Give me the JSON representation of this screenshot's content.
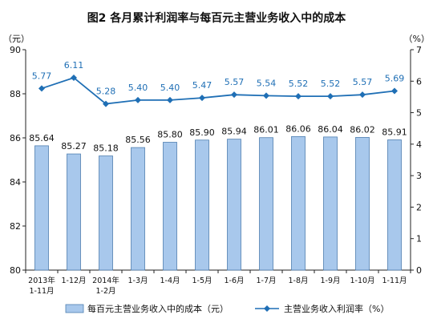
{
  "chart_data": {
    "type": "bar+line",
    "title": "图2  各月累计利润率与每百元主营业务收入中的成本",
    "left_unit": "（元）",
    "right_unit": "（%）",
    "categories": [
      [
        "2013年",
        "1-11月"
      ],
      [
        "1-12月"
      ],
      [
        "2014年",
        "1-2月"
      ],
      [
        "1-3月"
      ],
      [
        "1-4月"
      ],
      [
        "1-5月"
      ],
      [
        "1-6月"
      ],
      [
        "1-7月"
      ],
      [
        "1-8月"
      ],
      [
        "1-9月"
      ],
      [
        "1-10月"
      ],
      [
        "1-11月"
      ]
    ],
    "series": [
      {
        "name": "每百元主营业务收入中的成本（元）",
        "type": "bar",
        "axis": "left",
        "values": [
          85.64,
          85.27,
          85.18,
          85.56,
          85.8,
          85.9,
          85.94,
          86.01,
          86.06,
          86.04,
          86.02,
          85.91
        ],
        "labels": [
          "85.64",
          "85.27",
          "85.18",
          "85.56",
          "85.80",
          "85.90",
          "85.94",
          "86.01",
          "86.06",
          "86.04",
          "86.02",
          "85.91"
        ],
        "color": "#a8c8ec"
      },
      {
        "name": "主营业务收入利润率（%）",
        "type": "line",
        "axis": "right",
        "values": [
          5.77,
          6.11,
          5.28,
          5.4,
          5.4,
          5.47,
          5.57,
          5.54,
          5.52,
          5.52,
          5.57,
          5.69
        ],
        "labels": [
          "5.77",
          "6.11",
          "5.28",
          "5.40",
          "5.40",
          "5.47",
          "5.57",
          "5.54",
          "5.52",
          "5.52",
          "5.57",
          "5.69"
        ],
        "color": "#1f6fb5"
      }
    ],
    "y_left": {
      "min": 80,
      "max": 90,
      "ticks": [
        "80",
        "82",
        "84",
        "86",
        "88",
        "90"
      ]
    },
    "y_right": {
      "min": 0,
      "max": 7,
      "ticks": [
        "0",
        "1",
        "2",
        "3",
        "4",
        "5",
        "6",
        "7"
      ]
    },
    "legend_position": "bottom",
    "grid": false
  }
}
